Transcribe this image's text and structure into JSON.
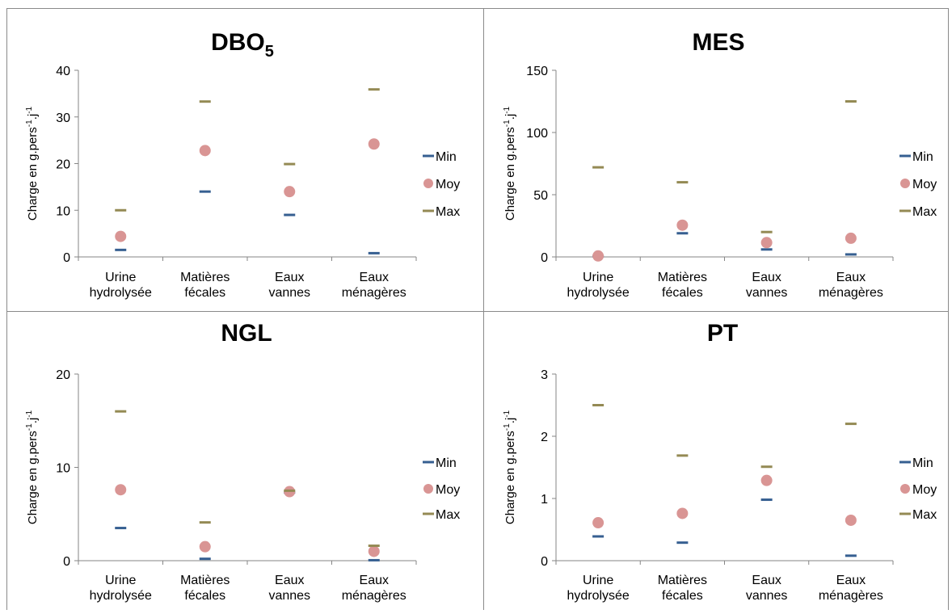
{
  "categories": [
    [
      "Urine",
      "hydrolysée"
    ],
    [
      "Matières",
      "fécales"
    ],
    [
      "Eaux",
      "vannes"
    ],
    [
      "Eaux",
      "ménagères"
    ]
  ],
  "ylabel": {
    "main": "Charge en g.pers",
    "sup1": "-1",
    "mid": ".j",
    "sup2": "-1"
  },
  "legend": [
    "Min",
    "Moy",
    "Max"
  ],
  "colors": {
    "Min": "#365f91",
    "Moy": "#d99594",
    "Max": "#948a54",
    "axis": "#868686",
    "text": "#000000",
    "border": "#8a8a8a"
  },
  "chart_data": [
    {
      "type": "scatter",
      "title": "DBO",
      "title_sub": "5",
      "categories": [
        "Urine hydrolysée",
        "Matières fécales",
        "Eaux vannes",
        "Eaux ménagères"
      ],
      "ylim": [
        0,
        40
      ],
      "yticks": [
        0,
        10,
        20,
        30,
        40
      ],
      "series": [
        {
          "name": "Min",
          "marker": "dash",
          "values": [
            1.5,
            14,
            9,
            0.8
          ]
        },
        {
          "name": "Moy",
          "marker": "circle",
          "values": [
            4.4,
            22.8,
            14,
            24.2
          ]
        },
        {
          "name": "Max",
          "marker": "dash",
          "values": [
            10,
            33.3,
            19.9,
            35.9
          ]
        }
      ],
      "legend_position": "right",
      "grid": false
    },
    {
      "type": "scatter",
      "title": "MES",
      "title_sub": "",
      "categories": [
        "Urine hydrolysée",
        "Matières fécales",
        "Eaux vannes",
        "Eaux ménagères"
      ],
      "ylim": [
        0,
        150
      ],
      "yticks": [
        0,
        50,
        100,
        150
      ],
      "series": [
        {
          "name": "Min",
          "marker": "dash",
          "values": [
            0.5,
            19,
            6,
            2
          ]
        },
        {
          "name": "Moy",
          "marker": "circle",
          "values": [
            0.8,
            25.5,
            11.5,
            15
          ]
        },
        {
          "name": "Max",
          "marker": "dash",
          "values": [
            72,
            60,
            20,
            125
          ]
        }
      ],
      "legend_position": "right",
      "grid": false
    },
    {
      "type": "scatter",
      "title": "NGL",
      "title_sub": "",
      "categories": [
        "Urine hydrolysée",
        "Matières fécales",
        "Eaux vannes",
        "Eaux ménagères"
      ],
      "ylim": [
        0,
        20
      ],
      "yticks": [
        0,
        10,
        20
      ],
      "series": [
        {
          "name": "Min",
          "marker": "dash",
          "values": [
            3.5,
            0.2,
            7.3,
            0.05
          ]
        },
        {
          "name": "Moy",
          "marker": "circle",
          "values": [
            7.6,
            1.5,
            7.4,
            1.0
          ]
        },
        {
          "name": "Max",
          "marker": "dash",
          "values": [
            16,
            4.1,
            7.5,
            1.6
          ]
        }
      ],
      "legend_position": "right",
      "grid": false
    },
    {
      "type": "scatter",
      "title": "PT",
      "title_sub": "",
      "categories": [
        "Urine hydrolysée",
        "Matières fécales",
        "Eaux vannes",
        "Eaux ménagères"
      ],
      "ylim": [
        0,
        3
      ],
      "yticks": [
        0,
        1,
        2,
        3
      ],
      "series": [
        {
          "name": "Min",
          "marker": "dash",
          "values": [
            0.39,
            0.29,
            0.98,
            0.08
          ]
        },
        {
          "name": "Moy",
          "marker": "circle",
          "values": [
            0.61,
            0.76,
            1.29,
            0.65
          ]
        },
        {
          "name": "Max",
          "marker": "dash",
          "values": [
            2.5,
            1.69,
            1.51,
            2.2
          ]
        }
      ],
      "legend_position": "right",
      "grid": false
    }
  ]
}
